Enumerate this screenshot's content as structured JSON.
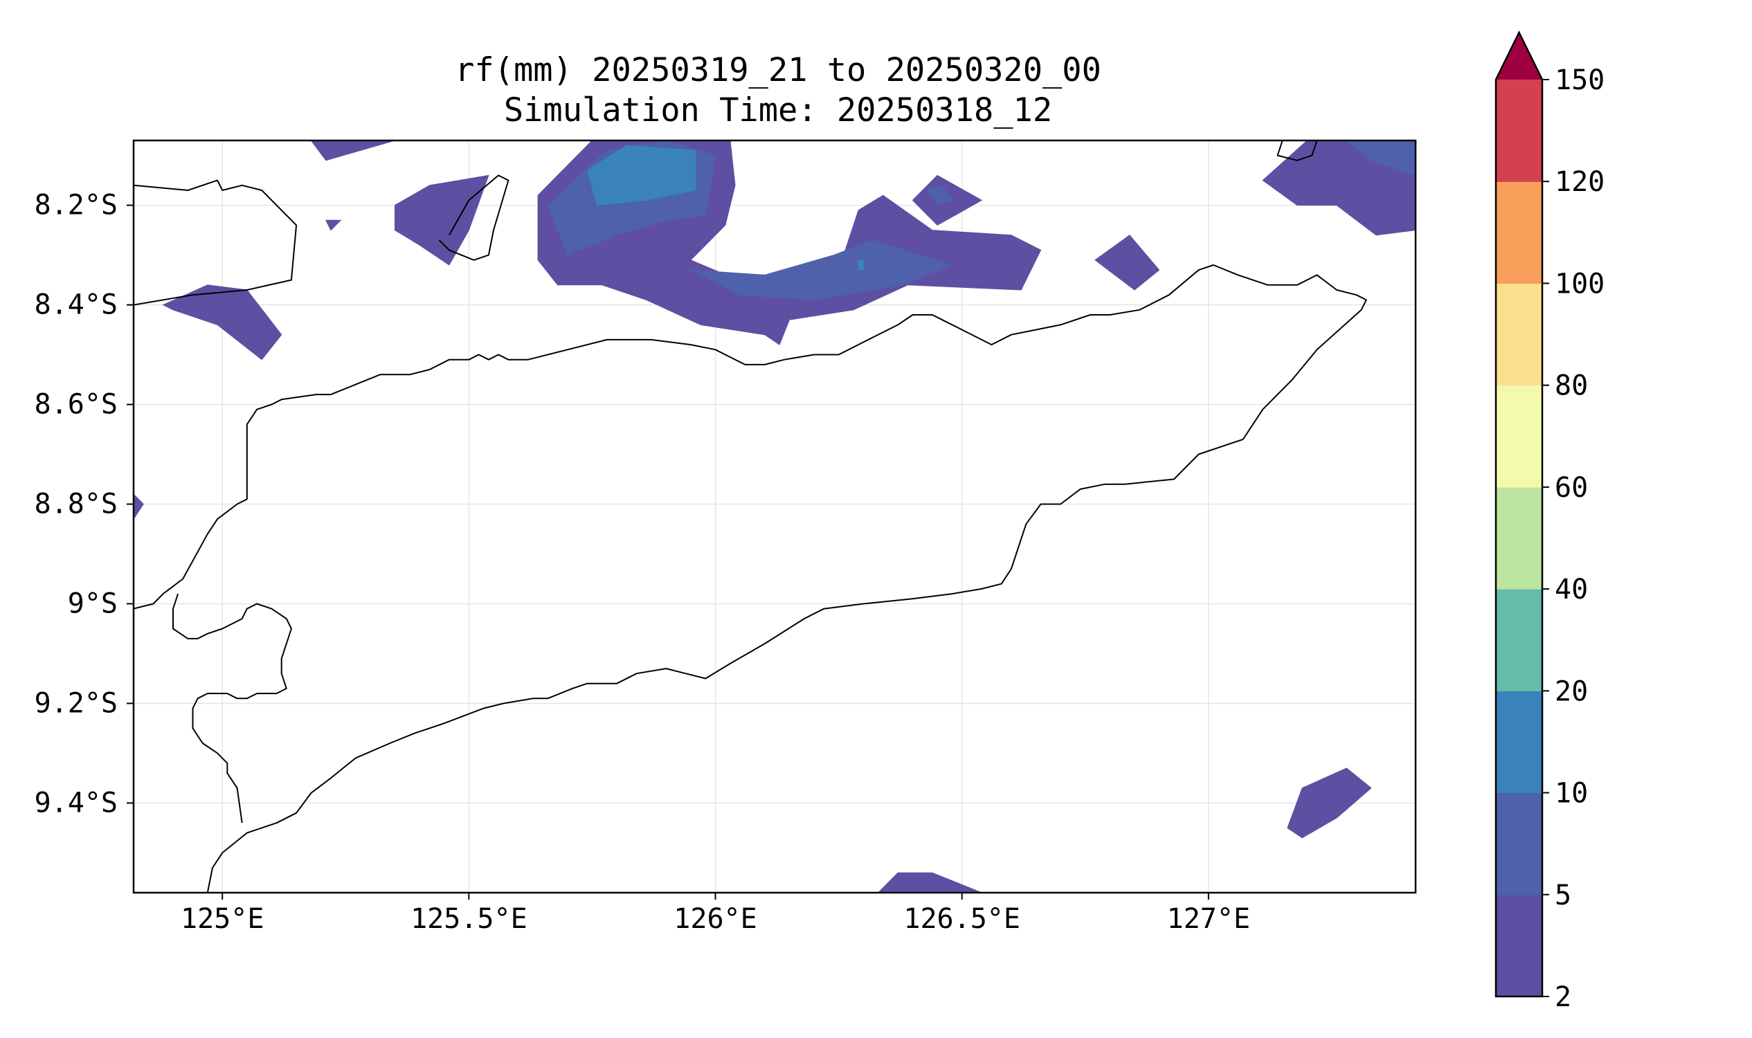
{
  "title": {
    "line1": "rf(mm) 20250319_21 to 20250320_00",
    "line2": "Simulation Time: 20250318_12"
  },
  "chart_data": {
    "type": "heatmap",
    "variable": "rf(mm)",
    "map": {
      "lon_range": [
        124.82,
        127.42
      ],
      "lat_range": [
        -9.58,
        -8.07
      ],
      "x_ticks": [
        125.0,
        125.5,
        126.0,
        126.5,
        127.0
      ],
      "x_tick_labels": [
        "125°E",
        "125.5°E",
        "126°E",
        "126.5°E",
        "127°E"
      ],
      "y_ticks": [
        -8.2,
        -8.4,
        -8.6,
        -8.8,
        -9.0,
        -9.2,
        -9.4
      ],
      "y_tick_labels": [
        "8.2°S",
        "8.4°S",
        "8.6°S",
        "8.8°S",
        "9°S",
        "9.2°S",
        "9.4°S"
      ],
      "grid": true
    },
    "colorbar": {
      "levels": [
        2,
        5,
        10,
        20,
        40,
        60,
        80,
        100,
        120,
        150
      ],
      "labels": [
        "2",
        "5",
        "10",
        "20",
        "40",
        "60",
        "80",
        "100",
        "120",
        "150"
      ],
      "colors": [
        "#5e4fa2",
        "#4e61aa",
        "#3a82bb",
        "#63bda9",
        "#bde4a0",
        "#f4faad",
        "#fbe08d",
        "#f99f5c",
        "#d3404e"
      ],
      "extend_color": "#9e0142",
      "extend": "max"
    },
    "coastline_color": "#000000",
    "rain_regions": [
      {
        "level_min": 2,
        "points": [
          [
            125.18,
            -8.07
          ],
          [
            125.35,
            -8.07
          ],
          [
            125.21,
            -8.11
          ]
        ]
      },
      {
        "level_min": 2,
        "points": [
          [
            125.21,
            -8.23
          ],
          [
            125.24,
            -8.23
          ],
          [
            125.22,
            -8.25
          ]
        ]
      },
      {
        "level_min": 2,
        "points": [
          [
            125.35,
            -8.2
          ],
          [
            125.42,
            -8.16
          ],
          [
            125.54,
            -8.14
          ],
          [
            125.5,
            -8.25
          ],
          [
            125.46,
            -8.32
          ],
          [
            125.4,
            -8.28
          ],
          [
            125.35,
            -8.25
          ]
        ]
      },
      {
        "level_min": 2,
        "points": [
          [
            124.88,
            -8.4
          ],
          [
            124.97,
            -8.36
          ],
          [
            125.05,
            -8.37
          ],
          [
            125.12,
            -8.46
          ],
          [
            125.08,
            -8.51
          ],
          [
            124.99,
            -8.44
          ],
          [
            124.9,
            -8.41
          ]
        ]
      },
      {
        "level_min": 2,
        "points": [
          [
            125.64,
            -8.18
          ],
          [
            125.75,
            -8.07
          ],
          [
            126.03,
            -8.07
          ],
          [
            126.04,
            -8.16
          ],
          [
            126.02,
            -8.24
          ],
          [
            125.95,
            -8.31
          ],
          [
            126.07,
            -8.36
          ],
          [
            126.25,
            -8.33
          ],
          [
            126.29,
            -8.21
          ],
          [
            126.34,
            -8.18
          ],
          [
            126.44,
            -8.25
          ],
          [
            126.6,
            -8.26
          ],
          [
            126.66,
            -8.29
          ],
          [
            126.62,
            -8.37
          ],
          [
            126.39,
            -8.36
          ],
          [
            126.28,
            -8.41
          ],
          [
            126.15,
            -8.43
          ],
          [
            126.13,
            -8.48
          ],
          [
            126.1,
            -8.46
          ],
          [
            125.97,
            -8.44
          ],
          [
            125.86,
            -8.39
          ],
          [
            125.77,
            -8.36
          ],
          [
            125.68,
            -8.36
          ],
          [
            125.64,
            -8.31
          ]
        ]
      },
      {
        "level_min": 2,
        "points": [
          [
            126.4,
            -8.19
          ],
          [
            126.45,
            -8.14
          ],
          [
            126.54,
            -8.19
          ],
          [
            126.45,
            -8.24
          ]
        ]
      },
      {
        "level_min": 2,
        "points": [
          [
            126.77,
            -8.31
          ],
          [
            126.84,
            -8.26
          ],
          [
            126.9,
            -8.33
          ],
          [
            126.85,
            -8.37
          ]
        ]
      },
      {
        "level_min": 2,
        "points": [
          [
            127.11,
            -8.15
          ],
          [
            127.2,
            -8.07
          ],
          [
            127.42,
            -8.07
          ],
          [
            127.42,
            -8.25
          ],
          [
            127.34,
            -8.26
          ],
          [
            127.26,
            -8.2
          ],
          [
            127.18,
            -8.2
          ]
        ]
      },
      {
        "level_min": 2,
        "points": [
          [
            126.33,
            -9.58
          ],
          [
            126.37,
            -9.54
          ],
          [
            126.44,
            -9.54
          ],
          [
            126.54,
            -9.58
          ]
        ]
      },
      {
        "level_min": 2,
        "points": [
          [
            124.82,
            -8.78
          ],
          [
            124.84,
            -8.8
          ],
          [
            124.82,
            -8.83
          ]
        ]
      },
      {
        "level_min": 2,
        "points": [
          [
            127.16,
            -9.45
          ],
          [
            127.19,
            -9.37
          ],
          [
            127.28,
            -9.33
          ],
          [
            127.33,
            -9.37
          ],
          [
            127.26,
            -9.43
          ],
          [
            127.19,
            -9.47
          ]
        ]
      },
      {
        "level_min": 5,
        "points": [
          [
            125.66,
            -8.2
          ],
          [
            125.78,
            -8.09
          ],
          [
            125.9,
            -8.07
          ],
          [
            126.0,
            -8.1
          ],
          [
            125.98,
            -8.22
          ],
          [
            125.9,
            -8.23
          ],
          [
            125.8,
            -8.26
          ],
          [
            125.7,
            -8.3
          ]
        ]
      },
      {
        "level_min": 5,
        "points": [
          [
            125.95,
            -8.33
          ],
          [
            126.1,
            -8.34
          ],
          [
            126.24,
            -8.3
          ],
          [
            126.32,
            -8.27
          ],
          [
            126.48,
            -8.32
          ],
          [
            126.38,
            -8.36
          ],
          [
            126.2,
            -8.39
          ],
          [
            126.05,
            -8.38
          ]
        ]
      },
      {
        "level_min": 5,
        "points": [
          [
            126.43,
            -8.17
          ],
          [
            126.46,
            -8.16
          ],
          [
            126.48,
            -8.19
          ],
          [
            126.45,
            -8.2
          ]
        ]
      },
      {
        "level_min": 5,
        "points": [
          [
            127.28,
            -8.07
          ],
          [
            127.42,
            -8.07
          ],
          [
            127.42,
            -8.14
          ],
          [
            127.33,
            -8.11
          ]
        ]
      },
      {
        "level_min": 10,
        "points": [
          [
            125.74,
            -8.13
          ],
          [
            125.82,
            -8.08
          ],
          [
            125.96,
            -8.09
          ],
          [
            125.96,
            -8.17
          ],
          [
            125.86,
            -8.19
          ],
          [
            125.76,
            -8.2
          ]
        ]
      },
      {
        "level_min": 10,
        "points": [
          [
            126.29,
            -8.31
          ],
          [
            126.3,
            -8.31
          ],
          [
            126.3,
            -8.33
          ],
          [
            126.29,
            -8.33
          ]
        ]
      }
    ],
    "coastlines": [
      [
        [
          124.82,
          -8.16
        ],
        [
          124.93,
          -8.17
        ],
        [
          124.99,
          -8.15
        ],
        [
          125.0,
          -8.17
        ],
        [
          125.04,
          -8.16
        ],
        [
          125.08,
          -8.17
        ],
        [
          125.15,
          -8.24
        ],
        [
          125.14,
          -8.35
        ],
        [
          125.05,
          -8.37
        ],
        [
          124.94,
          -8.38
        ],
        [
          124.82,
          -8.4
        ]
      ],
      [
        [
          125.46,
          -8.26
        ],
        [
          125.5,
          -8.19
        ],
        [
          125.56,
          -8.14
        ],
        [
          125.58,
          -8.15
        ],
        [
          125.55,
          -8.25
        ],
        [
          125.54,
          -8.3
        ],
        [
          125.51,
          -8.31
        ],
        [
          125.46,
          -8.29
        ],
        [
          125.44,
          -8.27
        ]
      ],
      [
        [
          124.82,
          -9.01
        ],
        [
          124.86,
          -9.0
        ],
        [
          124.88,
          -8.98
        ],
        [
          124.92,
          -8.95
        ],
        [
          124.97,
          -8.86
        ],
        [
          124.99,
          -8.83
        ],
        [
          125.03,
          -8.8
        ],
        [
          125.05,
          -8.79
        ],
        [
          125.05,
          -8.64
        ],
        [
          125.07,
          -8.61
        ],
        [
          125.1,
          -8.6
        ],
        [
          125.12,
          -8.59
        ],
        [
          125.19,
          -8.58
        ],
        [
          125.22,
          -8.58
        ],
        [
          125.27,
          -8.56
        ],
        [
          125.32,
          -8.54
        ],
        [
          125.38,
          -8.54
        ],
        [
          125.42,
          -8.53
        ],
        [
          125.46,
          -8.51
        ],
        [
          125.5,
          -8.51
        ],
        [
          125.52,
          -8.5
        ],
        [
          125.54,
          -8.51
        ],
        [
          125.56,
          -8.5
        ],
        [
          125.58,
          -8.51
        ],
        [
          125.62,
          -8.51
        ],
        [
          125.7,
          -8.49
        ],
        [
          125.78,
          -8.47
        ],
        [
          125.87,
          -8.47
        ],
        [
          125.95,
          -8.48
        ],
        [
          126.0,
          -8.49
        ],
        [
          126.06,
          -8.52
        ],
        [
          126.1,
          -8.52
        ],
        [
          126.14,
          -8.51
        ],
        [
          126.2,
          -8.5
        ],
        [
          126.25,
          -8.5
        ],
        [
          126.31,
          -8.47
        ],
        [
          126.37,
          -8.44
        ],
        [
          126.4,
          -8.42
        ],
        [
          126.44,
          -8.42
        ],
        [
          126.46,
          -8.43
        ],
        [
          126.5,
          -8.45
        ],
        [
          126.54,
          -8.47
        ],
        [
          126.56,
          -8.48
        ],
        [
          126.6,
          -8.46
        ],
        [
          126.7,
          -8.44
        ],
        [
          126.76,
          -8.42
        ],
        [
          126.8,
          -8.42
        ],
        [
          126.86,
          -8.41
        ],
        [
          126.92,
          -8.38
        ],
        [
          126.98,
          -8.33
        ],
        [
          127.01,
          -8.32
        ],
        [
          127.06,
          -8.34
        ],
        [
          127.12,
          -8.36
        ],
        [
          127.18,
          -8.36
        ],
        [
          127.22,
          -8.34
        ],
        [
          127.26,
          -8.37
        ],
        [
          127.3,
          -8.38
        ],
        [
          127.32,
          -8.39
        ],
        [
          127.31,
          -8.41
        ],
        [
          127.22,
          -8.49
        ],
        [
          127.17,
          -8.55
        ],
        [
          127.11,
          -8.61
        ],
        [
          127.07,
          -8.67
        ],
        [
          127.04,
          -8.68
        ],
        [
          126.98,
          -8.7
        ],
        [
          126.93,
          -8.75
        ],
        [
          126.83,
          -8.76
        ],
        [
          126.79,
          -8.76
        ],
        [
          126.74,
          -8.77
        ],
        [
          126.7,
          -8.8
        ],
        [
          126.66,
          -8.8
        ],
        [
          126.63,
          -8.84
        ],
        [
          126.6,
          -8.93
        ],
        [
          126.58,
          -8.96
        ],
        [
          126.54,
          -8.97
        ],
        [
          126.48,
          -8.98
        ],
        [
          126.4,
          -8.99
        ],
        [
          126.3,
          -9.0
        ],
        [
          126.22,
          -9.01
        ],
        [
          126.18,
          -9.03
        ],
        [
          126.1,
          -9.08
        ],
        [
          126.03,
          -9.12
        ],
        [
          125.98,
          -9.15
        ],
        [
          125.94,
          -9.14
        ],
        [
          125.9,
          -9.13
        ],
        [
          125.84,
          -9.14
        ],
        [
          125.8,
          -9.16
        ],
        [
          125.74,
          -9.16
        ],
        [
          125.71,
          -9.17
        ],
        [
          125.66,
          -9.19
        ],
        [
          125.63,
          -9.19
        ],
        [
          125.57,
          -9.2
        ],
        [
          125.53,
          -9.21
        ],
        [
          125.45,
          -9.24
        ],
        [
          125.39,
          -9.26
        ],
        [
          125.34,
          -9.28
        ],
        [
          125.27,
          -9.31
        ],
        [
          125.22,
          -9.35
        ],
        [
          125.18,
          -9.38
        ],
        [
          125.15,
          -9.42
        ],
        [
          125.11,
          -9.44
        ],
        [
          125.05,
          -9.46
        ],
        [
          125.0,
          -9.5
        ],
        [
          124.98,
          -9.53
        ],
        [
          124.97,
          -9.58
        ]
      ],
      [
        [
          124.91,
          -8.98
        ],
        [
          124.9,
          -9.01
        ],
        [
          124.9,
          -9.05
        ],
        [
          124.93,
          -9.07
        ],
        [
          124.95,
          -9.07
        ],
        [
          124.97,
          -9.06
        ],
        [
          125.0,
          -9.05
        ],
        [
          125.04,
          -9.03
        ],
        [
          125.05,
          -9.01
        ],
        [
          125.07,
          -9.0
        ],
        [
          125.1,
          -9.01
        ],
        [
          125.13,
          -9.03
        ],
        [
          125.14,
          -9.05
        ],
        [
          125.12,
          -9.11
        ],
        [
          125.12,
          -9.14
        ],
        [
          125.13,
          -9.17
        ],
        [
          125.11,
          -9.18
        ],
        [
          125.07,
          -9.18
        ],
        [
          125.05,
          -9.19
        ],
        [
          125.03,
          -9.19
        ],
        [
          125.01,
          -9.18
        ],
        [
          124.97,
          -9.18
        ],
        [
          124.95,
          -9.19
        ],
        [
          124.94,
          -9.21
        ],
        [
          124.94,
          -9.25
        ],
        [
          124.96,
          -9.28
        ],
        [
          124.99,
          -9.3
        ],
        [
          125.01,
          -9.32
        ],
        [
          125.01,
          -9.34
        ],
        [
          125.03,
          -9.37
        ],
        [
          125.04,
          -9.44
        ]
      ],
      [
        [
          127.15,
          -8.07
        ],
        [
          127.14,
          -8.1
        ],
        [
          127.18,
          -8.11
        ],
        [
          127.21,
          -8.1
        ],
        [
          127.22,
          -8.07
        ]
      ]
    ]
  }
}
